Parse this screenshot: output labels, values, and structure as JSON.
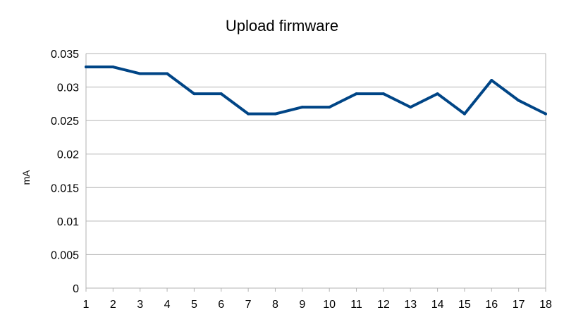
{
  "chart_data": {
    "type": "line",
    "title": "Upload firmware",
    "xlabel": "",
    "ylabel": "mA",
    "x": [
      1,
      2,
      3,
      4,
      5,
      6,
      7,
      8,
      9,
      10,
      11,
      12,
      13,
      14,
      15,
      16,
      17,
      18
    ],
    "x_tick_labels": [
      "1",
      "2",
      "3",
      "4",
      "5",
      "6",
      "7",
      "8",
      "9",
      "10",
      "11",
      "12",
      "13",
      "14",
      "15",
      "16",
      "17",
      "18"
    ],
    "ylim": [
      0,
      0.035
    ],
    "y_ticks": [
      0,
      0.005,
      0.01,
      0.015,
      0.02,
      0.025,
      0.03,
      0.035
    ],
    "y_tick_labels": [
      "0",
      "0.005",
      "0.01",
      "0.015",
      "0.02",
      "0.025",
      "0.03",
      "0.035"
    ],
    "grid": true,
    "legend": "none",
    "series": [
      {
        "color": "#004586",
        "values": [
          0.033,
          0.033,
          0.032,
          0.032,
          0.029,
          0.029,
          0.026,
          0.026,
          0.027,
          0.027,
          0.029,
          0.029,
          0.027,
          0.029,
          0.026,
          0.031,
          0.028,
          0.026
        ]
      }
    ]
  }
}
